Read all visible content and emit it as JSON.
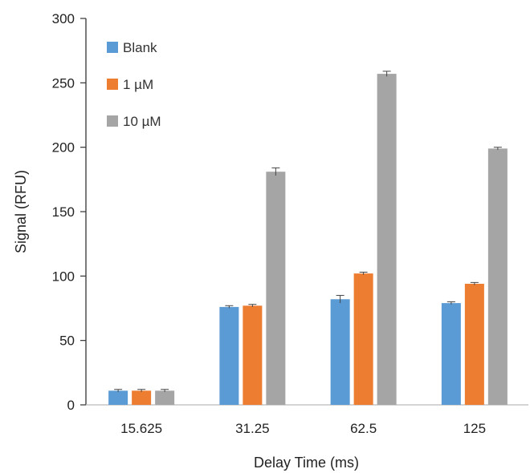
{
  "chart_data": {
    "type": "bar",
    "title": "",
    "xlabel": "Delay Time (ms)",
    "ylabel": "Signal (RFU)",
    "ylim": [
      0,
      300
    ],
    "yticks": [
      0,
      50,
      100,
      150,
      200,
      250,
      300
    ],
    "categories": [
      "15.625",
      "31.25",
      "62.5",
      "125"
    ],
    "series": [
      {
        "name": "Blank",
        "color": "#5B9BD5",
        "values": [
          11,
          76,
          82,
          79
        ],
        "errors": [
          1,
          1,
          3,
          1
        ]
      },
      {
        "name": "1 µM",
        "color": "#ED7D31",
        "values": [
          11,
          77,
          102,
          94
        ],
        "errors": [
          1,
          1,
          1,
          1
        ]
      },
      {
        "name": "10 µM",
        "color": "#A5A5A5",
        "values": [
          11,
          181,
          257,
          199
        ],
        "errors": [
          1,
          3,
          2,
          1
        ]
      }
    ],
    "legend_position": "top-left",
    "grid": false
  }
}
